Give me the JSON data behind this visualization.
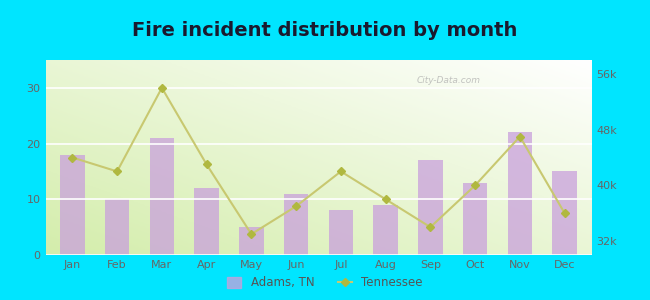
{
  "title": "Fire incident distribution by month",
  "months": [
    "Jan",
    "Feb",
    "Mar",
    "Apr",
    "May",
    "Jun",
    "Jul",
    "Aug",
    "Sep",
    "Oct",
    "Nov",
    "Dec"
  ],
  "adams_values": [
    18,
    10,
    21,
    12,
    5,
    11,
    8,
    9,
    17,
    13,
    22,
    15
  ],
  "tennessee_values": [
    44000,
    42000,
    54000,
    43000,
    33000,
    37000,
    42000,
    38000,
    34000,
    40000,
    47000,
    36000
  ],
  "bar_color": "#c9a0dc",
  "bar_alpha": 0.75,
  "line_color": "#c8c870",
  "line_marker": "D",
  "line_marker_color": "#b0b840",
  "outer_background": "#00e5ff",
  "left_ylim": [
    0,
    35
  ],
  "right_ylim": [
    30000,
    58000
  ],
  "left_yticks": [
    0,
    10,
    20,
    30
  ],
  "right_yticks": [
    32000,
    40000,
    48000,
    56000
  ],
  "right_yticklabels": [
    "32k",
    "40k",
    "48k",
    "56k"
  ],
  "title_fontsize": 14,
  "tick_fontsize": 8,
  "legend_adams": "Adams, TN",
  "legend_tennessee": "Tennessee",
  "watermark": "City-Data.com"
}
